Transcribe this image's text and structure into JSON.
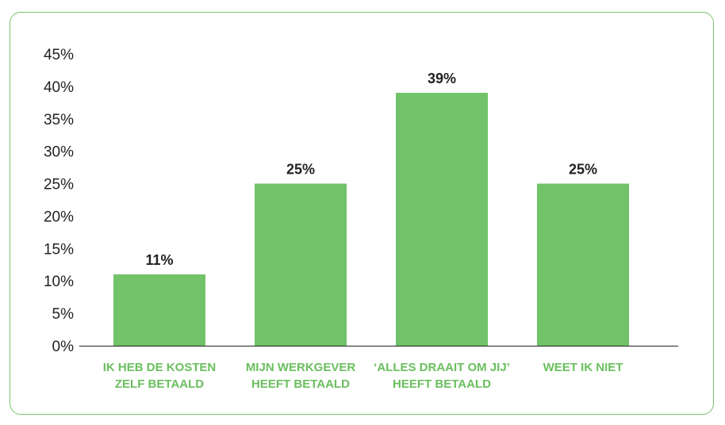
{
  "chart_data": {
    "type": "bar",
    "categories": [
      [
        "IK HEB DE KOSTEN",
        "ZELF BETAALD"
      ],
      [
        "MIJN WERKGEVER",
        "HEEFT BETAALD"
      ],
      [
        "‘ALLES DRAAIT OM JIJ’",
        "HEEFT BETAALD"
      ],
      [
        "WEET IK NIET"
      ]
    ],
    "values": [
      11,
      25,
      39,
      25
    ],
    "value_labels": [
      "11%",
      "25%",
      "39%",
      "25%"
    ],
    "y_ticks": [
      0,
      5,
      10,
      15,
      20,
      25,
      30,
      35,
      40,
      45
    ],
    "y_tick_labels": [
      "0%",
      "5%",
      "10%",
      "15%",
      "20%",
      "25%",
      "30%",
      "35%",
      "40%",
      "45%"
    ],
    "ylim": [
      0,
      45
    ],
    "grid": false,
    "colors": {
      "bar": "#71c269",
      "category_text": "#6abf5e",
      "frame": "#7cc36e",
      "axis": "#222222"
    }
  }
}
